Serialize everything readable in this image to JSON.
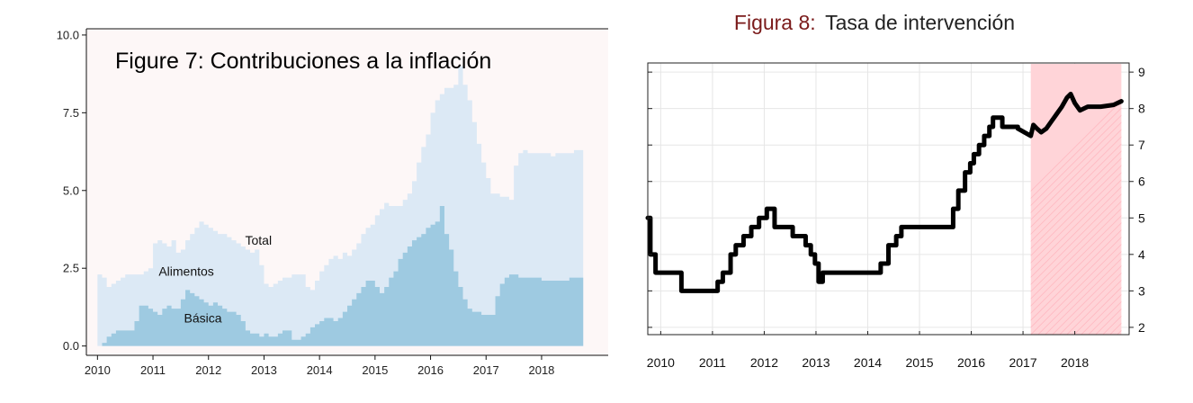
{
  "chart_data": [
    {
      "type": "area",
      "title": "Figure 7: Contribuciones a la inflación",
      "xlabel": "",
      "ylabel": "",
      "x_tick_labels": [
        "2010",
        "2011",
        "2012",
        "2013",
        "2014",
        "2015",
        "2016",
        "2017",
        "2018"
      ],
      "y_tick_labels": [
        "0.0",
        "2.5",
        "5.0",
        "7.5",
        "10.0"
      ],
      "xlim": [
        2009.8,
        2019.2
      ],
      "ylim": [
        -0.3,
        10.2
      ],
      "frequency": "monthly",
      "start": "2010-01",
      "colors": {
        "total": "#dce9f5",
        "basica": "#9ecae1",
        "panel": "#fdf7f7"
      },
      "annotations": [
        {
          "text": "Total",
          "x": 2012.9,
          "y": 3.4
        },
        {
          "text": "Alimentos",
          "x": 2011.6,
          "y": 2.4
        },
        {
          "text": "Básica",
          "x": 2011.9,
          "y": 0.9
        }
      ],
      "series": [
        {
          "key": "total",
          "values": [
            2.3,
            2.2,
            1.9,
            2.0,
            2.1,
            2.2,
            2.3,
            2.3,
            2.3,
            2.3,
            2.4,
            2.5,
            3.3,
            3.4,
            3.3,
            3.2,
            3.4,
            3.0,
            3.1,
            3.4,
            3.6,
            3.8,
            4.0,
            3.9,
            3.8,
            3.7,
            3.6,
            3.6,
            3.5,
            3.4,
            3.3,
            3.2,
            3.1,
            3.0,
            3.1,
            2.6,
            2.0,
            1.9,
            2.0,
            2.1,
            2.2,
            2.2,
            2.3,
            2.3,
            2.3,
            1.9,
            1.8,
            2.1,
            2.4,
            2.6,
            2.8,
            2.9,
            2.8,
            3.0,
            2.9,
            3.1,
            3.3,
            3.6,
            3.8,
            3.9,
            4.2,
            4.4,
            4.6,
            4.5,
            4.5,
            4.5,
            4.7,
            4.9,
            5.3,
            5.9,
            6.4,
            6.8,
            7.5,
            7.9,
            8.1,
            8.3,
            8.3,
            8.4,
            9.0,
            8.4,
            7.9,
            7.2,
            6.5,
            5.9,
            5.4,
            4.9,
            4.9,
            4.8,
            4.8,
            4.7,
            5.8,
            6.2,
            6.3,
            6.2,
            6.2,
            6.2,
            6.2,
            6.2,
            6.1,
            6.2,
            6.2,
            6.2,
            6.2,
            6.3,
            6.3
          ]
        },
        {
          "key": "basica",
          "values": [
            0.0,
            0.1,
            0.3,
            0.4,
            0.5,
            0.5,
            0.5,
            0.5,
            0.8,
            1.3,
            1.3,
            1.2,
            1.1,
            1.0,
            1.2,
            1.3,
            1.2,
            1.2,
            1.5,
            1.8,
            1.7,
            1.6,
            1.5,
            1.4,
            1.3,
            1.4,
            1.3,
            1.2,
            1.1,
            1.1,
            1.0,
            0.8,
            0.5,
            0.4,
            0.4,
            0.3,
            0.4,
            0.3,
            0.3,
            0.4,
            0.5,
            0.5,
            0.2,
            0.2,
            0.3,
            0.4,
            0.6,
            0.7,
            0.8,
            0.9,
            0.9,
            0.8,
            0.9,
            1.1,
            1.3,
            1.5,
            1.7,
            1.9,
            2.1,
            2.1,
            1.9,
            1.7,
            1.9,
            2.2,
            2.4,
            2.8,
            3.0,
            3.2,
            3.4,
            3.5,
            3.6,
            3.8,
            3.9,
            4.0,
            4.5,
            3.6,
            3.1,
            2.4,
            1.9,
            1.5,
            1.2,
            1.1,
            1.1,
            1.0,
            1.0,
            1.0,
            1.6,
            2.0,
            2.2,
            2.3,
            2.3,
            2.2,
            2.2,
            2.2,
            2.2,
            2.2,
            2.1,
            2.1,
            2.1,
            2.1,
            2.1,
            2.1,
            2.2,
            2.2,
            2.2
          ]
        }
      ]
    },
    {
      "type": "line",
      "title": {
        "number": "Figura 8:",
        "rest": "Tasa de intervención"
      },
      "xlabel": "",
      "ylabel": "",
      "x_tick_labels": [
        "2010",
        "2011",
        "2012",
        "2013",
        "2014",
        "2015",
        "2016",
        "2017",
        "2018"
      ],
      "y_tick_labels": [
        "2",
        "3",
        "4",
        "5",
        "6",
        "7",
        "8",
        "9"
      ],
      "xlim": [
        2009.75,
        2019.05
      ],
      "ylim": [
        1.8,
        9.25
      ],
      "y_axis_side": "right",
      "grid": true,
      "colors": {
        "line": "#000000",
        "band": "#ffd4d8",
        "title_number": "#7a1a1a"
      },
      "forecast_band": {
        "from": 2017.15,
        "to": 2018.9
      },
      "series": [
        {
          "name": "",
          "x": [
            2009.75,
            2009.8,
            2009.8,
            2009.9,
            2009.9,
            2010.4,
            2010.4,
            2011.1,
            2011.1,
            2011.2,
            2011.2,
            2011.35,
            2011.35,
            2011.45,
            2011.45,
            2011.6,
            2011.6,
            2011.75,
            2011.75,
            2011.9,
            2011.9,
            2012.05,
            2012.05,
            2012.2,
            2012.2,
            2012.55,
            2012.55,
            2012.8,
            2012.8,
            2012.9,
            2012.9,
            2012.98,
            2012.98,
            2013.05,
            2013.05,
            2013.13,
            2013.13,
            2014.25,
            2014.25,
            2014.4,
            2014.4,
            2014.55,
            2014.55,
            2014.65,
            2014.65,
            2015.65,
            2015.65,
            2015.75,
            2015.75,
            2015.88,
            2015.88,
            2015.98,
            2015.98,
            2016.05,
            2016.05,
            2016.15,
            2016.15,
            2016.25,
            2016.25,
            2016.35,
            2016.35,
            2016.42,
            2016.42,
            2016.48,
            2016.48,
            2016.55,
            2016.55,
            2016.6,
            2016.6,
            2016.9,
            2016.9,
            2017.15,
            2017.2,
            2017.27,
            2017.35,
            2017.45,
            2017.55,
            2017.65,
            2017.75,
            2017.85,
            2017.92,
            2018.0,
            2018.1,
            2018.25,
            2018.5,
            2018.75,
            2018.9
          ],
          "y": [
            5.0,
            5.0,
            4.0,
            4.0,
            3.5,
            3.5,
            3.0,
            3.0,
            3.25,
            3.25,
            3.5,
            3.5,
            4.0,
            4.0,
            4.25,
            4.25,
            4.5,
            4.5,
            4.75,
            4.75,
            5.0,
            5.0,
            5.25,
            5.25,
            4.75,
            4.75,
            4.5,
            4.5,
            4.25,
            4.25,
            4.0,
            4.0,
            3.75,
            3.75,
            3.25,
            3.25,
            3.5,
            3.5,
            3.75,
            3.75,
            4.25,
            4.25,
            4.5,
            4.5,
            4.75,
            4.75,
            5.25,
            5.25,
            5.75,
            5.75,
            6.25,
            6.25,
            6.5,
            6.5,
            6.75,
            6.75,
            7.0,
            7.0,
            7.25,
            7.25,
            7.5,
            7.5,
            7.75,
            7.75,
            7.75,
            7.75,
            7.75,
            7.75,
            7.5,
            7.5,
            7.45,
            7.25,
            7.55,
            7.45,
            7.35,
            7.45,
            7.65,
            7.85,
            8.05,
            8.3,
            8.4,
            8.15,
            7.95,
            8.05,
            8.05,
            8.1,
            8.2
          ]
        }
      ]
    }
  ]
}
